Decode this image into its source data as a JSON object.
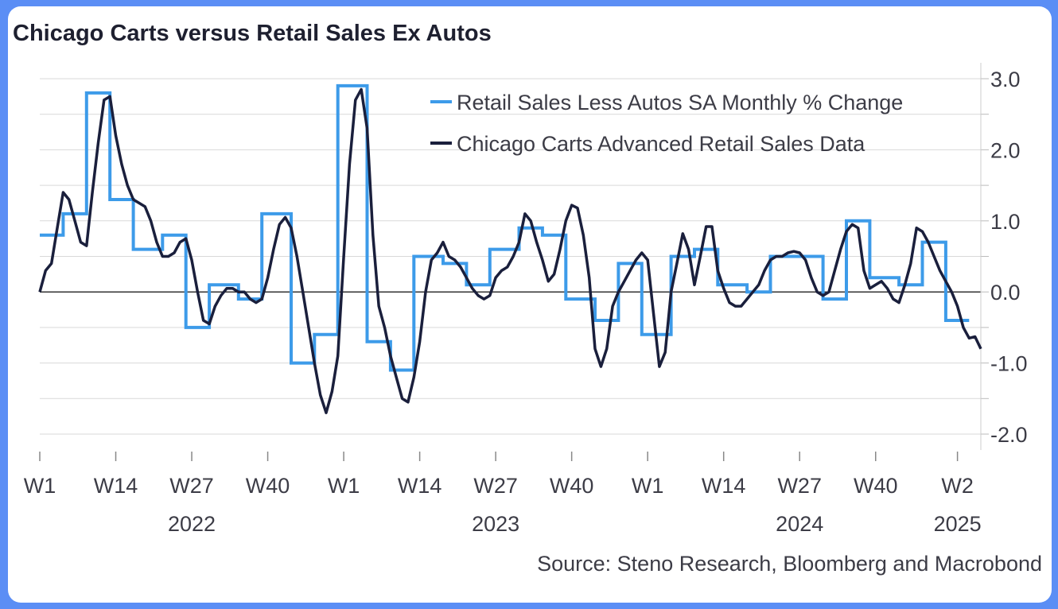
{
  "chart_data": {
    "type": "line",
    "title": "Chicago Carts versus Retail Sales Ex Autos",
    "source": "Source: Steno Research, Bloomberg and Macrobond",
    "ylim": [
      -2.0,
      3.0
    ],
    "y_ticks": [
      "3.0",
      "2.0",
      "1.0",
      "0.0",
      "-1.0",
      "-2.0"
    ],
    "x_ticks": [
      "W1",
      "W14",
      "W27",
      "W40",
      "W1",
      "W14",
      "W27",
      "W40",
      "W1",
      "W14",
      "W27",
      "W40",
      "W2"
    ],
    "x_years": [
      "2022",
      "2023",
      "2024",
      "2025"
    ],
    "legend_position": "top-right",
    "grid": true,
    "colors": {
      "retail": "#3d9be9",
      "carts": "#1a1f3c",
      "grid": "#d9d9d9",
      "axis": "#333333"
    },
    "series": [
      {
        "name": "Retail Sales Less Autos SA Monthly % Change",
        "style": "step",
        "points": [
          [
            1,
            0.8
          ],
          [
            5,
            0.8
          ],
          [
            5,
            1.1
          ],
          [
            9,
            1.1
          ],
          [
            9,
            2.8
          ],
          [
            13,
            2.8
          ],
          [
            13,
            1.3
          ],
          [
            17,
            1.3
          ],
          [
            17,
            0.6
          ],
          [
            22,
            0.6
          ],
          [
            22,
            0.8
          ],
          [
            26,
            0.8
          ],
          [
            26,
            -0.5
          ],
          [
            30,
            -0.5
          ],
          [
            30,
            0.1
          ],
          [
            35,
            0.1
          ],
          [
            35,
            -0.1
          ],
          [
            39,
            -0.1
          ],
          [
            39,
            1.1
          ],
          [
            44,
            1.1
          ],
          [
            44,
            -1.0
          ],
          [
            48,
            -1.0
          ],
          [
            48,
            -0.6
          ],
          [
            52,
            -0.6
          ],
          [
            52,
            2.9
          ],
          [
            57,
            2.9
          ],
          [
            57,
            -0.7
          ],
          [
            61,
            -0.7
          ],
          [
            61,
            -1.1
          ],
          [
            65,
            -1.1
          ],
          [
            65,
            0.5
          ],
          [
            70,
            0.5
          ],
          [
            70,
            0.4
          ],
          [
            74,
            0.4
          ],
          [
            74,
            0.1
          ],
          [
            78,
            0.1
          ],
          [
            78,
            0.6
          ],
          [
            83,
            0.6
          ],
          [
            83,
            0.9
          ],
          [
            87,
            0.9
          ],
          [
            87,
            0.8
          ],
          [
            91,
            0.8
          ],
          [
            91,
            -0.1
          ],
          [
            96,
            -0.1
          ],
          [
            96,
            -0.4
          ],
          [
            100,
            -0.4
          ],
          [
            100,
            0.4
          ],
          [
            104,
            0.4
          ],
          [
            104,
            -0.6
          ],
          [
            109,
            -0.6
          ],
          [
            109,
            0.5
          ],
          [
            113,
            0.5
          ],
          [
            113,
            0.6
          ],
          [
            117,
            0.6
          ],
          [
            117,
            0.1
          ],
          [
            122,
            0.1
          ],
          [
            122,
            0.0
          ],
          [
            126,
            0.0
          ],
          [
            126,
            0.5
          ],
          [
            130,
            0.5
          ],
          [
            130,
            0.5
          ],
          [
            135,
            0.5
          ],
          [
            135,
            -0.1
          ],
          [
            139,
            -0.1
          ],
          [
            139,
            1.0
          ],
          [
            143,
            1.0
          ],
          [
            143,
            0.2
          ],
          [
            148,
            0.2
          ],
          [
            148,
            0.1
          ],
          [
            152,
            0.1
          ],
          [
            152,
            0.7
          ],
          [
            156,
            0.7
          ],
          [
            156,
            -0.4
          ],
          [
            160,
            -0.4
          ]
        ]
      },
      {
        "name": "Chicago Carts Advanced Retail Sales Data",
        "style": "line",
        "points": [
          [
            1,
            0.0
          ],
          [
            2,
            0.3
          ],
          [
            3,
            0.4
          ],
          [
            4,
            0.9
          ],
          [
            5,
            1.4
          ],
          [
            6,
            1.3
          ],
          [
            7,
            1.0
          ],
          [
            8,
            0.7
          ],
          [
            9,
            0.65
          ],
          [
            10,
            1.4
          ],
          [
            11,
            2.1
          ],
          [
            12,
            2.7
          ],
          [
            13,
            2.75
          ],
          [
            14,
            2.2
          ],
          [
            15,
            1.8
          ],
          [
            16,
            1.5
          ],
          [
            17,
            1.3
          ],
          [
            18,
            1.25
          ],
          [
            19,
            1.2
          ],
          [
            20,
            1.0
          ],
          [
            21,
            0.7
          ],
          [
            22,
            0.5
          ],
          [
            23,
            0.5
          ],
          [
            24,
            0.55
          ],
          [
            25,
            0.7
          ],
          [
            26,
            0.75
          ],
          [
            27,
            0.45
          ],
          [
            28,
            0.0
          ],
          [
            29,
            -0.4
          ],
          [
            30,
            -0.45
          ],
          [
            31,
            -0.2
          ],
          [
            32,
            -0.05
          ],
          [
            33,
            0.05
          ],
          [
            34,
            0.05
          ],
          [
            35,
            0.0
          ],
          [
            36,
            0.0
          ],
          [
            37,
            -0.1
          ],
          [
            38,
            -0.15
          ],
          [
            39,
            -0.1
          ],
          [
            40,
            0.2
          ],
          [
            41,
            0.6
          ],
          [
            42,
            0.95
          ],
          [
            43,
            1.05
          ],
          [
            44,
            0.9
          ],
          [
            45,
            0.5
          ],
          [
            46,
            0.0
          ],
          [
            47,
            -0.5
          ],
          [
            48,
            -1.0
          ],
          [
            49,
            -1.45
          ],
          [
            50,
            -1.7
          ],
          [
            51,
            -1.4
          ],
          [
            52,
            -0.9
          ],
          [
            53,
            0.5
          ],
          [
            54,
            1.8
          ],
          [
            55,
            2.7
          ],
          [
            56,
            2.85
          ],
          [
            57,
            2.3
          ],
          [
            58,
            0.8
          ],
          [
            59,
            -0.2
          ],
          [
            60,
            -0.5
          ],
          [
            61,
            -0.9
          ],
          [
            62,
            -1.2
          ],
          [
            63,
            -1.5
          ],
          [
            64,
            -1.55
          ],
          [
            65,
            -1.2
          ],
          [
            66,
            -0.7
          ],
          [
            67,
            0.0
          ],
          [
            68,
            0.45
          ],
          [
            69,
            0.55
          ],
          [
            70,
            0.7
          ],
          [
            71,
            0.5
          ],
          [
            72,
            0.45
          ],
          [
            73,
            0.35
          ],
          [
            74,
            0.2
          ],
          [
            75,
            0.05
          ],
          [
            76,
            -0.05
          ],
          [
            77,
            -0.1
          ],
          [
            78,
            -0.05
          ],
          [
            79,
            0.2
          ],
          [
            80,
            0.3
          ],
          [
            81,
            0.35
          ],
          [
            82,
            0.5
          ],
          [
            83,
            0.7
          ],
          [
            84,
            1.1
          ],
          [
            85,
            1.0
          ],
          [
            86,
            0.7
          ],
          [
            87,
            0.45
          ],
          [
            88,
            0.15
          ],
          [
            89,
            0.25
          ],
          [
            90,
            0.6
          ],
          [
            91,
            1.0
          ],
          [
            92,
            1.22
          ],
          [
            93,
            1.18
          ],
          [
            94,
            0.8
          ],
          [
            95,
            0.2
          ],
          [
            96,
            -0.8
          ],
          [
            97,
            -1.05
          ],
          [
            98,
            -0.8
          ],
          [
            99,
            -0.2
          ],
          [
            100,
            0.0
          ],
          [
            101,
            0.15
          ],
          [
            102,
            0.3
          ],
          [
            103,
            0.45
          ],
          [
            104,
            0.55
          ],
          [
            105,
            0.45
          ],
          [
            106,
            -0.3
          ],
          [
            107,
            -1.05
          ],
          [
            108,
            -0.85
          ],
          [
            109,
            0.0
          ],
          [
            110,
            0.4
          ],
          [
            111,
            0.82
          ],
          [
            112,
            0.6
          ],
          [
            113,
            0.1
          ],
          [
            114,
            0.5
          ],
          [
            115,
            0.92
          ],
          [
            116,
            0.92
          ],
          [
            117,
            0.3
          ],
          [
            118,
            0.05
          ],
          [
            119,
            -0.15
          ],
          [
            120,
            -0.2
          ],
          [
            121,
            -0.2
          ],
          [
            122,
            -0.1
          ],
          [
            123,
            0.0
          ],
          [
            124,
            0.1
          ],
          [
            125,
            0.3
          ],
          [
            126,
            0.45
          ],
          [
            127,
            0.5
          ],
          [
            128,
            0.5
          ],
          [
            129,
            0.55
          ],
          [
            130,
            0.57
          ],
          [
            131,
            0.55
          ],
          [
            132,
            0.45
          ],
          [
            133,
            0.2
          ],
          [
            134,
            0.0
          ],
          [
            135,
            -0.05
          ],
          [
            136,
            0.0
          ],
          [
            137,
            0.3
          ],
          [
            138,
            0.6
          ],
          [
            139,
            0.85
          ],
          [
            140,
            0.95
          ],
          [
            141,
            0.9
          ],
          [
            142,
            0.3
          ],
          [
            143,
            0.05
          ],
          [
            144,
            0.1
          ],
          [
            145,
            0.15
          ],
          [
            146,
            0.05
          ],
          [
            147,
            -0.1
          ],
          [
            148,
            -0.15
          ],
          [
            149,
            0.1
          ],
          [
            150,
            0.4
          ],
          [
            151,
            0.9
          ],
          [
            152,
            0.85
          ],
          [
            153,
            0.7
          ],
          [
            154,
            0.5
          ],
          [
            155,
            0.3
          ],
          [
            156,
            0.15
          ],
          [
            157,
            0.0
          ],
          [
            158,
            -0.2
          ],
          [
            159,
            -0.5
          ],
          [
            160,
            -0.65
          ],
          [
            161,
            -0.63
          ],
          [
            162,
            -0.8
          ]
        ]
      }
    ]
  }
}
